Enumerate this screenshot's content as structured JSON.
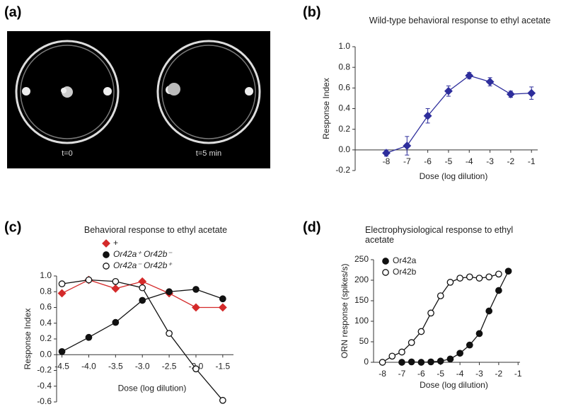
{
  "panel_labels": [
    "(a)",
    "(b)",
    "(c)",
    "(d)"
  ],
  "image_panel": {
    "labels": [
      "t=0",
      "t=5 min"
    ]
  },
  "chart_data": [
    {
      "type": "line",
      "title": "Wild-type behavioral response to ethyl acetate",
      "xlabel": "Dose (log dilution)",
      "ylabel": "Response Index",
      "xlim": [
        -9.5,
        -0.7
      ],
      "ylim": [
        -0.2,
        1.0
      ],
      "xticks": [
        -8,
        -7,
        -6,
        -5,
        -4,
        -3,
        -2,
        -1
      ],
      "yticks": [
        {
          "value": -0.2,
          "label": "-0.2"
        },
        {
          "value": 0,
          "label": "0.0"
        },
        0.2,
        0.4,
        0.6,
        0.8,
        {
          "value": 1,
          "label": "1.0"
        }
      ],
      "x": [
        -8,
        -7,
        -6,
        -5,
        -4,
        -3,
        -2,
        -1
      ],
      "series": [
        {
          "color": "#2e2e9c",
          "marker": "diamond",
          "filled": true,
          "values": [
            -0.03,
            0.04,
            0.33,
            0.57,
            0.72,
            0.66,
            0.54,
            0.55
          ],
          "errors": [
            0.03,
            0.09,
            0.07,
            0.05,
            0.03,
            0.04,
            0.03,
            0.06
          ]
        }
      ]
    },
    {
      "type": "line",
      "title": "Behavioral response to ethyl acetate",
      "xlabel": "Dose (log dilution)",
      "ylabel": "Response Index",
      "xlim": [
        -4.6,
        -1.3
      ],
      "ylim": [
        -0.6,
        1.0
      ],
      "xticks": [
        -4.5,
        {
          "value": -4,
          "label": "-4.0"
        },
        -3.5,
        {
          "value": -3,
          "label": "-3.0"
        },
        -2.5,
        {
          "value": -2,
          "label": "-2.0"
        },
        -1.5
      ],
      "yticks": [
        -0.6,
        -0.4,
        -0.2,
        {
          "value": 0,
          "label": "0.0"
        },
        0.2,
        0.4,
        0.6,
        0.8,
        {
          "value": 1,
          "label": "1.0"
        }
      ],
      "x": [
        -4.5,
        -4,
        -3.5,
        -3,
        -2.5,
        -2,
        -1.5
      ],
      "series": [
        {
          "name": "+",
          "color": "#d42a2a",
          "marker": "diamond",
          "filled": true,
          "values": [
            0.78,
            0.95,
            0.84,
            0.93,
            0.78,
            0.6,
            0.6
          ]
        },
        {
          "name": "Or42a⁺ Or42b⁻",
          "color": "#111111",
          "marker": "circle",
          "filled": true,
          "values": [
            0.04,
            0.22,
            0.41,
            0.69,
            0.8,
            0.83,
            0.71
          ]
        },
        {
          "name": "Or42a⁻ Or42b⁺",
          "color": "#111111",
          "marker": "circle",
          "filled": false,
          "values": [
            0.9,
            0.95,
            0.93,
            0.85,
            0.27,
            -0.18,
            -0.58
          ]
        }
      ]
    },
    {
      "type": "line",
      "title": "Electrophysiological response to ethyl acetate",
      "xlabel": "Dose (log dilution)",
      "ylabel": "ORN response (spikes/s)",
      "xlim": [
        -8.46,
        -0.9
      ],
      "ylim": [
        0,
        250
      ],
      "xticks": [
        -8,
        -7,
        -6,
        -5,
        -4,
        -3,
        -2,
        -1
      ],
      "yticks": [
        0,
        50,
        100,
        150,
        200,
        250
      ],
      "series": [
        {
          "name": "Or42a",
          "color": "#111111",
          "marker": "circle",
          "filled": true,
          "x": [
            -7,
            -6.5,
            -6,
            -5.5,
            -5,
            -4.5,
            -4,
            -3.5,
            -3,
            -2.5,
            -2,
            -1.5
          ],
          "values": [
            0,
            1,
            0,
            1,
            3,
            8,
            22,
            42,
            70,
            125,
            175,
            222
          ]
        },
        {
          "name": "Or42b",
          "color": "#111111",
          "marker": "circle",
          "filled": false,
          "x": [
            -8,
            -7.5,
            -7,
            -6.5,
            -6,
            -5.5,
            -5,
            -4.5,
            -4,
            -3.5,
            -3,
            -2.5,
            -2
          ],
          "values": [
            0,
            15,
            25,
            48,
            75,
            120,
            162,
            195,
            205,
            208,
            205,
            208,
            215
          ]
        }
      ]
    }
  ]
}
